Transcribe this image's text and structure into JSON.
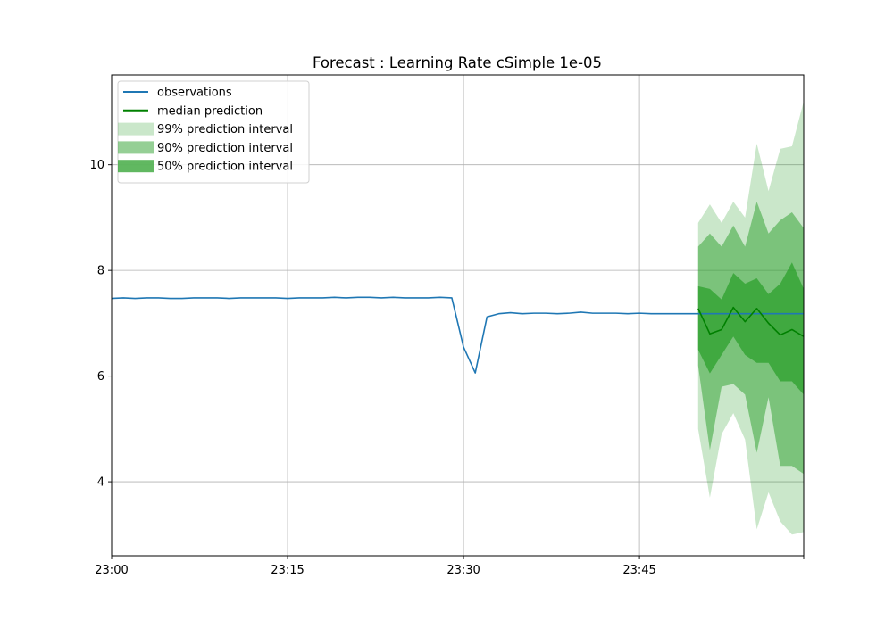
{
  "chart_data": {
    "type": "line",
    "title": "Forecast : Learning Rate cSimple 1e-05",
    "xlabel": "",
    "ylabel": "",
    "x_unit": "minutes",
    "xlim": [
      "23:00",
      "23:59"
    ],
    "ylim": [
      2.6,
      11.7
    ],
    "grid": true,
    "legend_position": "top-left",
    "x_ticks": [
      {
        "value": "23:00",
        "label": "23:00"
      },
      {
        "value": "23:15",
        "label": "23:15"
      },
      {
        "value": "23:30",
        "label": "23:30"
      },
      {
        "value": "23:45",
        "label": "23:45"
      }
    ],
    "y_ticks": [
      {
        "value": 4,
        "label": "4"
      },
      {
        "value": 6,
        "label": "6"
      },
      {
        "value": 8,
        "label": "8"
      },
      {
        "value": 10,
        "label": "10"
      }
    ],
    "series": [
      {
        "name": "observations",
        "color": "#1f77b4",
        "x": [
          "23:00",
          "23:01",
          "23:02",
          "23:03",
          "23:04",
          "23:05",
          "23:06",
          "23:07",
          "23:08",
          "23:09",
          "23:10",
          "23:11",
          "23:12",
          "23:13",
          "23:14",
          "23:15",
          "23:16",
          "23:17",
          "23:18",
          "23:19",
          "23:20",
          "23:21",
          "23:22",
          "23:23",
          "23:24",
          "23:25",
          "23:26",
          "23:27",
          "23:28",
          "23:29",
          "23:30",
          "23:31",
          "23:32",
          "23:33",
          "23:34",
          "23:35",
          "23:36",
          "23:37",
          "23:38",
          "23:39",
          "23:40",
          "23:41",
          "23:42",
          "23:43",
          "23:44",
          "23:45",
          "23:46",
          "23:47",
          "23:48",
          "23:49",
          "23:50",
          "23:51",
          "23:52",
          "23:53",
          "23:54",
          "23:55",
          "23:56",
          "23:57",
          "23:58",
          "23:59"
        ],
        "values": [
          7.47,
          7.48,
          7.47,
          7.48,
          7.48,
          7.47,
          7.47,
          7.48,
          7.48,
          7.48,
          7.47,
          7.48,
          7.48,
          7.48,
          7.48,
          7.47,
          7.48,
          7.48,
          7.48,
          7.49,
          7.48,
          7.49,
          7.49,
          7.48,
          7.49,
          7.48,
          7.48,
          7.48,
          7.49,
          7.48,
          6.55,
          6.06,
          7.12,
          7.18,
          7.2,
          7.18,
          7.19,
          7.19,
          7.18,
          7.19,
          7.21,
          7.19,
          7.19,
          7.19,
          7.18,
          7.19,
          7.18,
          7.18,
          7.18,
          7.18,
          7.18,
          7.18,
          7.18,
          7.18,
          7.18,
          7.18,
          7.18,
          7.18,
          7.18,
          7.18
        ]
      },
      {
        "name": "median prediction",
        "color": "#008000",
        "x": [
          "23:50",
          "23:51",
          "23:52",
          "23:53",
          "23:54",
          "23:55",
          "23:56",
          "23:57",
          "23:58",
          "23:59"
        ],
        "values": [
          7.28,
          6.8,
          6.88,
          7.3,
          7.03,
          7.28,
          7.0,
          6.78,
          6.88,
          6.75
        ]
      }
    ],
    "intervals": [
      {
        "name": "99% prediction interval",
        "color": "#2ca02c",
        "opacity": 0.25,
        "x": [
          "23:50",
          "23:51",
          "23:52",
          "23:53",
          "23:54",
          "23:55",
          "23:56",
          "23:57",
          "23:58",
          "23:59"
        ],
        "lower": [
          5.0,
          3.7,
          4.9,
          5.3,
          4.8,
          3.1,
          3.8,
          3.25,
          3.0,
          3.05
        ],
        "upper": [
          8.9,
          9.25,
          8.9,
          9.3,
          9.0,
          10.4,
          9.5,
          10.3,
          10.35,
          11.2
        ]
      },
      {
        "name": "90% prediction interval",
        "color": "#2ca02c",
        "opacity": 0.5,
        "x": [
          "23:50",
          "23:51",
          "23:52",
          "23:53",
          "23:54",
          "23:55",
          "23:56",
          "23:57",
          "23:58",
          "23:59"
        ],
        "lower": [
          6.2,
          4.6,
          5.8,
          5.85,
          5.65,
          4.55,
          5.6,
          4.3,
          4.3,
          4.15
        ],
        "upper": [
          8.45,
          8.7,
          8.45,
          8.85,
          8.45,
          9.3,
          8.7,
          8.95,
          9.1,
          8.8
        ]
      },
      {
        "name": "50% prediction interval",
        "color": "#2ca02c",
        "opacity": 0.75,
        "x": [
          "23:50",
          "23:51",
          "23:52",
          "23:53",
          "23:54",
          "23:55",
          "23:56",
          "23:57",
          "23:58",
          "23:59"
        ],
        "lower": [
          6.5,
          6.05,
          6.4,
          6.75,
          6.4,
          6.25,
          6.25,
          5.9,
          5.9,
          5.65
        ],
        "upper": [
          7.7,
          7.65,
          7.45,
          7.95,
          7.75,
          7.85,
          7.55,
          7.75,
          8.15,
          7.65
        ]
      }
    ]
  }
}
